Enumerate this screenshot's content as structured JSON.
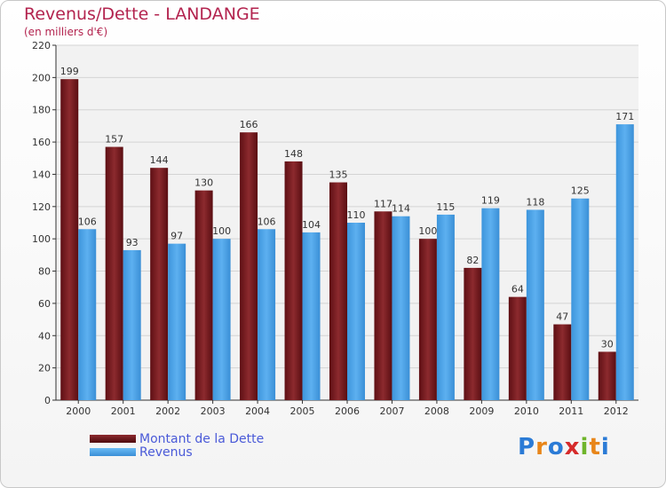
{
  "chart_data": {
    "type": "bar",
    "title": "Revenus/Dette - LANDANGE",
    "subtitle": "(en milliers d'€)",
    "categories": [
      "2000",
      "2001",
      "2002",
      "2003",
      "2004",
      "2005",
      "2006",
      "2007",
      "2008",
      "2009",
      "2010",
      "2011",
      "2012"
    ],
    "series": [
      {
        "name": "Montant de la Dette",
        "color": "#7a1a1f",
        "values": [
          199,
          157,
          144,
          130,
          166,
          148,
          135,
          117,
          100,
          82,
          64,
          47,
          30
        ]
      },
      {
        "name": "Revenus",
        "color": "#4aa3e8",
        "values": [
          106,
          93,
          97,
          100,
          106,
          104,
          110,
          114,
          115,
          119,
          118,
          125,
          171
        ]
      }
    ],
    "ylim": [
      0,
      220
    ],
    "yticks": [
      0,
      20,
      40,
      60,
      80,
      100,
      120,
      140,
      160,
      180,
      200,
      220
    ],
    "grid": true,
    "legend_position": "bottom-left"
  },
  "logo": {
    "letters": [
      "P",
      "r",
      "o",
      "x",
      "i",
      "t",
      "i"
    ],
    "colors": [
      "#2b7bd6",
      "#e8861a",
      "#2b7bd6",
      "#d62b2b",
      "#6fb52b",
      "#e8861a",
      "#2b7bd6"
    ]
  }
}
